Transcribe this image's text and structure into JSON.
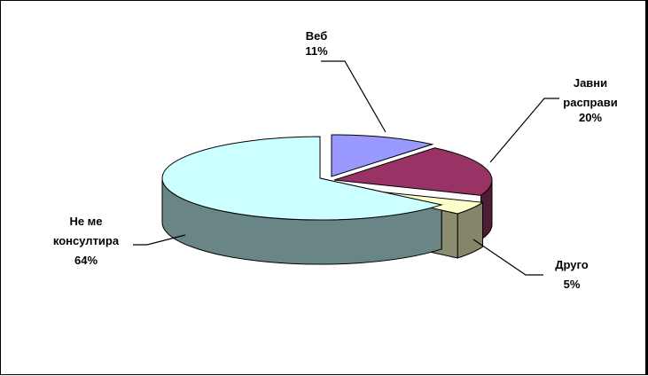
{
  "chart_data": {
    "type": "pie",
    "title": "",
    "style": "3d-exploded",
    "legend": "none",
    "slices": [
      {
        "label": "Веб",
        "value": 11,
        "value_label": "11%",
        "color": "#9999FF"
      },
      {
        "label": "Јавни расправи",
        "label_lines": [
          "Јавни",
          "расправи"
        ],
        "value": 20,
        "value_label": "20%",
        "color": "#993366"
      },
      {
        "label": "Друго",
        "value": 5,
        "value_label": "5%",
        "color": "#FFFFCC"
      },
      {
        "label": "Не ме консултира",
        "label_lines": [
          "Не ме",
          "консултира"
        ],
        "value": 64,
        "value_label": "64%",
        "color": "#CCFFFF"
      }
    ]
  }
}
